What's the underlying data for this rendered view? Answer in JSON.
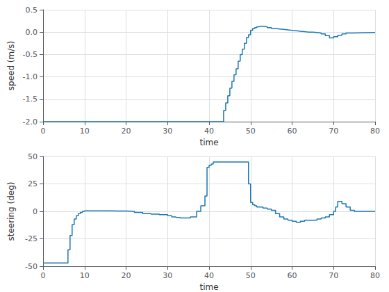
{
  "chart_data": [
    {
      "type": "step",
      "x": [
        0,
        43,
        43.5,
        44,
        44.5,
        45,
        45.5,
        46,
        46.5,
        47,
        47.5,
        48,
        48.5,
        49,
        49.5,
        50,
        50.5,
        51,
        51.5,
        52,
        52.5,
        53,
        54,
        55,
        56,
        57,
        58,
        59,
        60,
        61,
        62,
        63,
        64,
        65,
        66,
        67,
        68,
        69,
        70,
        71,
        72,
        73,
        74,
        80
      ],
      "values": [
        -2.0,
        -2.0,
        -1.75,
        -1.58,
        -1.42,
        -1.25,
        -1.1,
        -0.95,
        -0.82,
        -0.65,
        -0.5,
        -0.38,
        -0.25,
        -0.12,
        -0.06,
        0.04,
        0.08,
        0.1,
        0.12,
        0.13,
        0.13,
        0.12,
        0.1,
        0.08,
        0.07,
        0.06,
        0.05,
        0.04,
        0.03,
        0.02,
        0.01,
        0.0,
        0.0,
        -0.01,
        -0.02,
        -0.04,
        -0.08,
        -0.13,
        -0.1,
        -0.07,
        -0.04,
        -0.02,
        -0.01,
        0.0
      ],
      "color": "#1B78B4",
      "xlim": [
        0,
        80
      ],
      "ylim": [
        -2.0,
        0.5
      ],
      "xticks": [
        0,
        10,
        20,
        30,
        40,
        50,
        60,
        70,
        80
      ],
      "yticks": [
        {
          "value": -2.0,
          "label": "-2.0"
        },
        -1.5,
        {
          "value": -1.0,
          "label": "-1.0"
        },
        -0.5,
        {
          "value": 0.0,
          "label": "0.0"
        },
        0.5
      ],
      "xlabel": "time",
      "ylabel": "speed (m/s)",
      "grid": true
    },
    {
      "type": "step",
      "x": [
        0,
        0.5,
        5,
        5.5,
        6,
        6.5,
        7,
        7.5,
        8,
        8.5,
        9,
        9.5,
        10,
        11,
        12,
        14,
        16,
        18,
        20,
        22,
        24,
        26,
        28,
        30,
        31,
        32,
        33,
        34,
        35,
        35.5,
        36,
        37,
        38,
        39,
        39.5,
        40,
        40.5,
        41,
        42,
        43,
        44,
        45,
        46,
        47,
        48,
        49,
        49.5,
        50,
        50.5,
        51,
        51.5,
        52,
        53,
        54,
        55,
        56,
        57,
        58,
        59,
        60,
        61,
        62,
        63,
        64,
        65,
        66,
        67,
        68,
        69,
        70,
        70.5,
        71,
        72,
        73,
        74,
        75,
        80
      ],
      "values": [
        -47,
        -47,
        -47,
        -47,
        -35,
        -22,
        -12,
        -7,
        -4,
        -2,
        -1,
        0,
        0.5,
        0.5,
        0.5,
        0.5,
        0.3,
        0.3,
        0.0,
        -1,
        -2,
        -2.5,
        -3,
        -4,
        -5,
        -5.5,
        -6,
        -6,
        -6,
        -5,
        -5,
        0,
        5,
        14,
        40,
        42,
        43,
        45,
        45,
        45,
        45,
        45,
        45,
        45,
        45,
        45,
        25,
        8,
        6,
        5,
        4,
        4,
        3,
        2,
        1,
        -2,
        -5,
        -7,
        -8,
        -9,
        -10,
        -9,
        -8,
        -8,
        -8,
        -7,
        -6,
        -5,
        -3,
        0,
        4,
        9,
        7,
        4,
        1,
        0,
        0
      ],
      "color": "#1B78B4",
      "xlim": [
        0,
        80
      ],
      "ylim": [
        -50,
        50
      ],
      "xticks": [
        0,
        10,
        20,
        30,
        40,
        50,
        60,
        70,
        80
      ],
      "yticks": [
        -50,
        -25,
        0,
        25,
        50
      ],
      "xlabel": "time",
      "ylabel": "steering (deg)",
      "grid": true
    }
  ]
}
